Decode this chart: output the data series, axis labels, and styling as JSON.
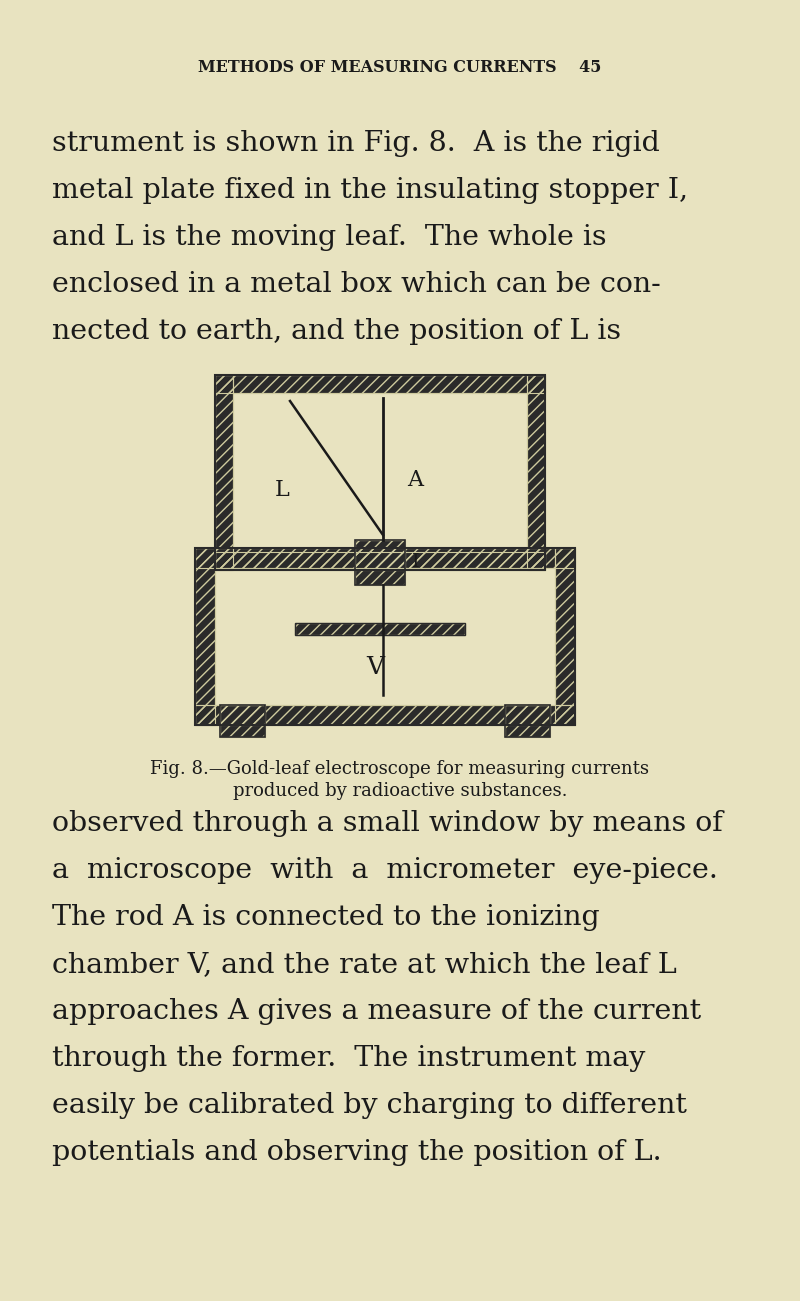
{
  "bg_color": "#e8e3c0",
  "text_color": "#1a1a1a",
  "page_width": 8.0,
  "page_height": 13.01,
  "header_text": "METHODS OF MEASURING CURRENTS    45",
  "header_fontsize": 11.5,
  "para1_lines": [
    "strument is shown in Fig. 8.  A is the rigid",
    "metal plate fixed in the insulating stopper I,",
    "and L is the moving leaf.  The whole is",
    "enclosed in a metal box which can be con-",
    "nected to earth, and the position of L is"
  ],
  "para2_lines": [
    "observed through a small window by means of",
    "a  microscope  with  a  micrometer  eye-piece.",
    "The rod A is connected to the ionizing",
    "chamber V, and the rate at which the leaf L",
    "approaches A gives a measure of the current",
    "through the former.  The instrument may",
    "easily be calibrated by charging to different",
    "potentials and observing the position of L."
  ],
  "fig_caption_line1": "Fig. 8.—Gold-leaf electroscope for measuring currents",
  "fig_caption_line2": "produced by radioactive substances.",
  "body_fontsize": 20.5,
  "caption_fontsize": 13.0,
  "hatch_color": "#2a2a2a",
  "hatch_bg": "#ceca9e",
  "line_color": "#1a1a1a"
}
